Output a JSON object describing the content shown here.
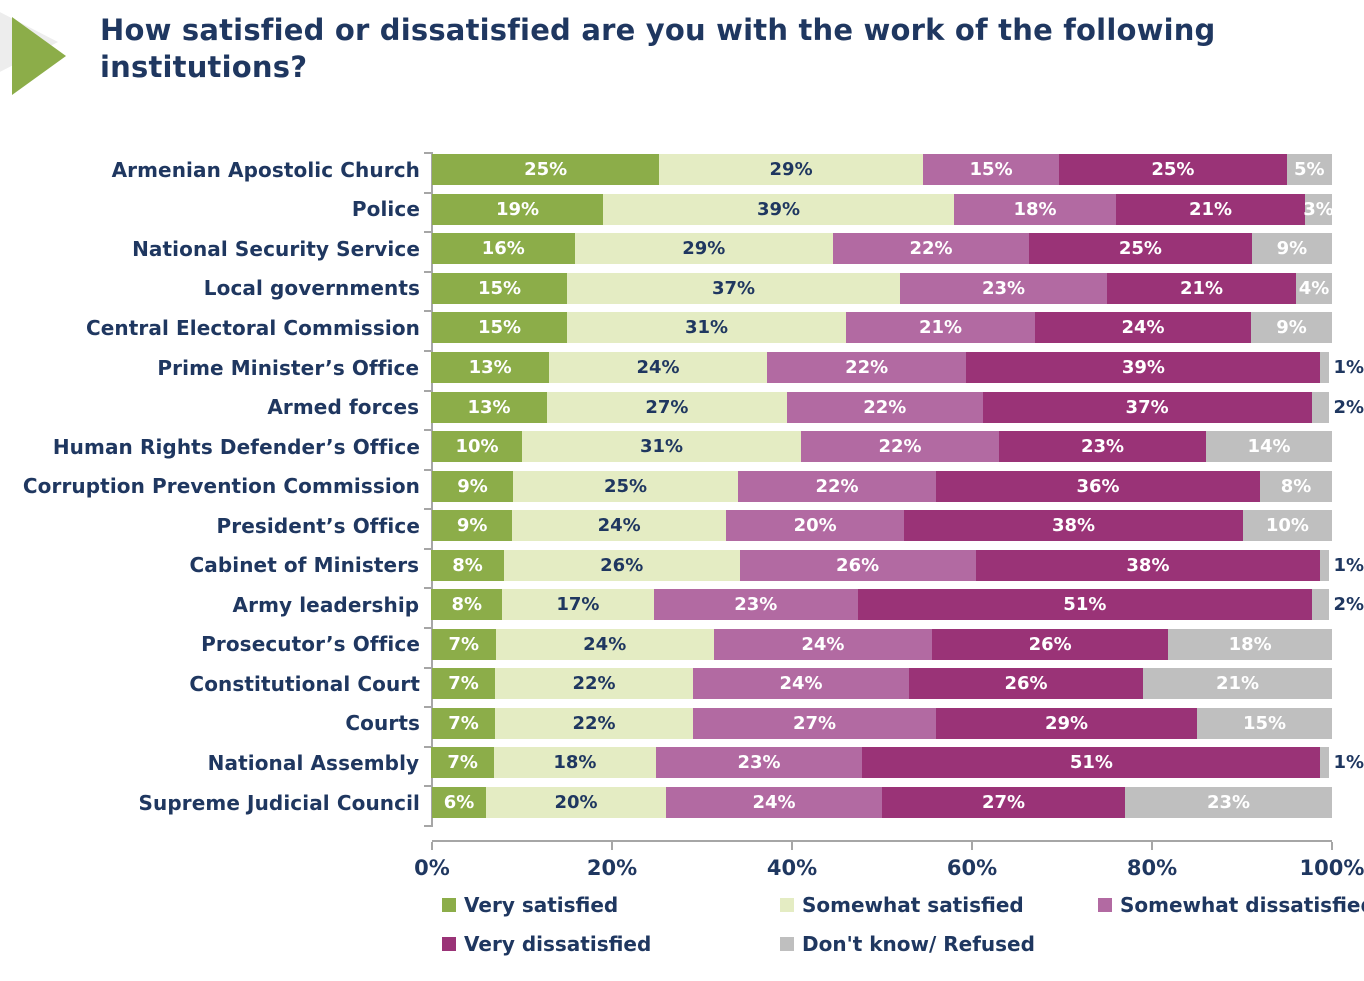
{
  "title": "How satisfied or dissatisfied are you with the work of the following institutions?",
  "colors": {
    "text": "#1F3760",
    "axis": "#A6A6A6",
    "decoration_green": "#8CAD49",
    "decoration_gray": "#EDEDED"
  },
  "chart_data": {
    "type": "bar",
    "variant": "100-percent-stacked-horizontal",
    "value_suffix": "%",
    "grid": false,
    "legend_position": "bottom",
    "categories": [
      "Armenian Apostolic Church",
      "Police",
      "National Security Service",
      "Local governments",
      "Central Electoral Commission",
      "Prime Minister’s Office",
      "Armed forces",
      "Human Rights Defender’s Office",
      "Corruption Prevention Commission",
      "President’s Office",
      "Cabinet of Ministers",
      "Army leadership",
      "Prosecutor’s Office",
      "Constitutional Court",
      "Courts",
      "National Assembly",
      "Supreme Judicial Council"
    ],
    "series": [
      {
        "name": "Very satisfied",
        "color": "#8CAD49",
        "label_color": "#FFFFFF",
        "values": [
          25,
          19,
          16,
          15,
          15,
          13,
          13,
          10,
          9,
          9,
          8,
          8,
          7,
          7,
          7,
          7,
          6
        ]
      },
      {
        "name": "Somewhat satisfied",
        "color": "#E4ECC3",
        "label_color": "#1F3760",
        "values": [
          29,
          39,
          29,
          37,
          31,
          24,
          27,
          31,
          25,
          24,
          26,
          17,
          24,
          22,
          22,
          18,
          20
        ]
      },
      {
        "name": "Somewhat dissatisfied",
        "color": "#B26AA2",
        "label_color": "#FFFFFF",
        "values": [
          15,
          18,
          22,
          23,
          21,
          22,
          22,
          22,
          22,
          20,
          26,
          23,
          24,
          24,
          27,
          23,
          24
        ]
      },
      {
        "name": "Very dissatisfied",
        "color": "#9A3377",
        "label_color": "#FFFFFF",
        "values": [
          25,
          21,
          25,
          21,
          24,
          39,
          37,
          23,
          36,
          38,
          38,
          51,
          26,
          26,
          29,
          51,
          27
        ]
      },
      {
        "name": "Don't know/ Refused",
        "color": "#BFBFBF",
        "label_color": "#FFFFFF",
        "values": [
          5,
          3,
          9,
          4,
          9,
          1,
          2,
          14,
          8,
          10,
          1,
          2,
          18,
          21,
          15,
          1,
          23
        ]
      }
    ],
    "x_axis": {
      "min": 0,
      "max": 100,
      "tick_labels": [
        "0%",
        "20%",
        "40%",
        "60%",
        "80%",
        "100%"
      ]
    },
    "outside_label_color": "#1F3760"
  }
}
